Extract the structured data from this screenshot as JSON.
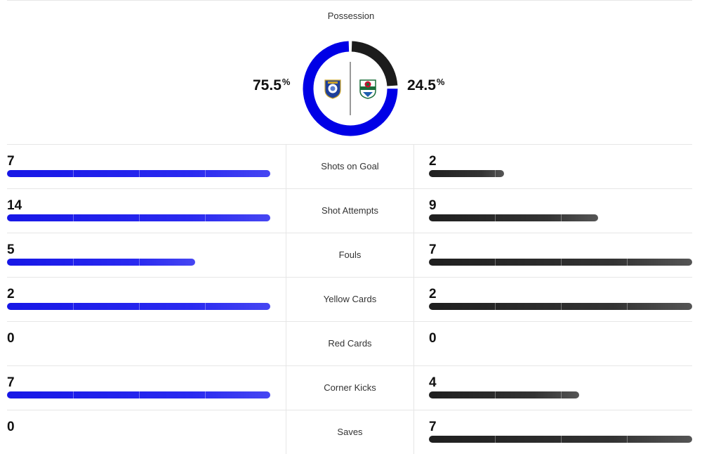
{
  "possession": {
    "title": "Possession",
    "home_percent": "75.5",
    "away_percent": "24.5",
    "percent_symbol": "%",
    "home_fraction": 0.755,
    "away_fraction": 0.245,
    "home_color": "#0000e6",
    "away_color": "#1c1c1c",
    "home_crest_icon": "leicester-city-crest-icon",
    "away_crest_icon": "blackburn-rovers-crest-icon"
  },
  "colors": {
    "home_bar": "#1a1ae8",
    "away_bar": "#2a2a2a"
  },
  "stats": [
    {
      "label": "Shots on Goal",
      "home": "7",
      "away": "2",
      "home_fill": 1.0,
      "away_fill": 0.286
    },
    {
      "label": "Shot Attempts",
      "home": "14",
      "away": "9",
      "home_fill": 1.0,
      "away_fill": 0.643
    },
    {
      "label": "Fouls",
      "home": "5",
      "away": "7",
      "home_fill": 0.714,
      "away_fill": 1.0
    },
    {
      "label": "Yellow Cards",
      "home": "2",
      "away": "2",
      "home_fill": 1.0,
      "away_fill": 1.0
    },
    {
      "label": "Red Cards",
      "home": "0",
      "away": "0",
      "home_fill": 0,
      "away_fill": 0
    },
    {
      "label": "Corner Kicks",
      "home": "7",
      "away": "4",
      "home_fill": 1.0,
      "away_fill": 0.571
    },
    {
      "label": "Saves",
      "home": "0",
      "away": "7",
      "home_fill": 0,
      "away_fill": 1.0
    }
  ]
}
